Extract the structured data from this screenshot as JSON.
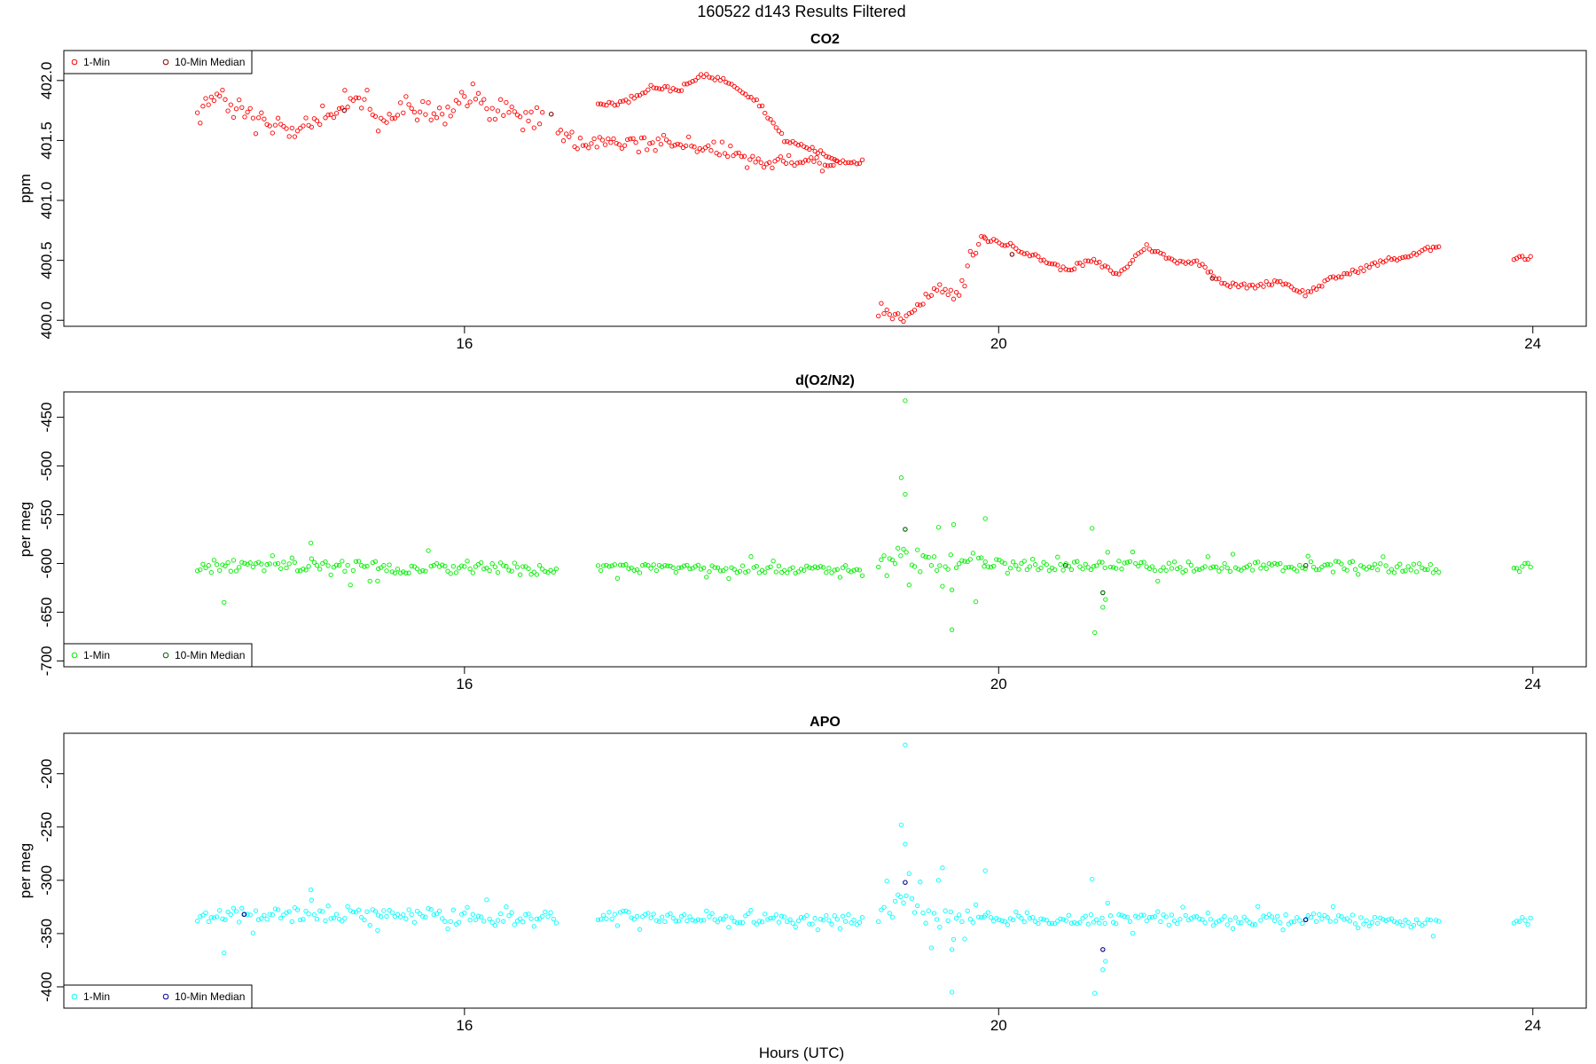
{
  "figure": {
    "title": "160522   d143   Results Filtered",
    "xlabel": "Hours (UTC)"
  },
  "chart_data": [
    {
      "type": "scatter",
      "title": "CO2",
      "xlabel": "Hours (UTC)",
      "ylabel": "ppm",
      "xlim": [
        13.0,
        24.4
      ],
      "ylim": [
        399.95,
        402.25
      ],
      "xticks": [
        "16",
        "20",
        "24"
      ],
      "yticks": [
        "400.0",
        "400.5",
        "401.0",
        "401.5",
        "402.0"
      ],
      "legend": {
        "position": "top-left",
        "entries": [
          "1-Min",
          "10-Min Median"
        ]
      },
      "colors": {
        "one_min": "#ff0000",
        "median": "#8b0000"
      },
      "segments": [
        {
          "x": [
            14.0,
            14.2,
            14.4,
            14.6,
            14.8,
            15.0,
            15.2,
            15.4,
            15.6,
            15.8,
            16.0,
            16.2,
            16.4,
            16.6
          ],
          "y": [
            401.75,
            401.85,
            401.7,
            401.62,
            401.6,
            401.72,
            401.87,
            401.65,
            401.78,
            401.68,
            401.85,
            401.75,
            401.72,
            401.75
          ],
          "noise": 0.04,
          "wild": 0.12,
          "wild_every": 2
        },
        {
          "x": [
            16.7,
            16.85,
            17.0,
            17.2,
            17.4,
            17.6,
            17.8,
            18.0,
            18.2,
            18.4,
            18.6,
            18.8
          ],
          "y": [
            401.58,
            401.45,
            401.52,
            401.48,
            401.5,
            401.46,
            401.44,
            401.38,
            401.33,
            401.31,
            401.34,
            401.3
          ],
          "noise": 0.03,
          "wild": 0.08,
          "wild_every": 3
        },
        {
          "x": [
            17.0,
            17.2,
            17.4,
            17.6,
            17.8,
            18.0,
            18.2,
            18.4,
            18.6,
            18.8,
            19.0
          ],
          "y": [
            401.8,
            401.82,
            401.95,
            401.92,
            402.05,
            401.98,
            401.82,
            401.5,
            401.43,
            401.33,
            401.32
          ],
          "noise": 0.02,
          "wild": 0.0,
          "wild_every": 0
        },
        {
          "x": [
            19.1,
            19.25,
            19.4,
            19.55,
            19.7,
            19.8,
            19.9
          ],
          "y": [
            400.05,
            400.02,
            400.12,
            400.3,
            400.22,
            400.55,
            400.68
          ],
          "noise": 0.03,
          "wild": 0.08,
          "wild_every": 2
        },
        {
          "x": [
            19.9,
            20.1,
            20.3,
            20.5,
            20.7,
            20.9,
            21.1,
            21.3,
            21.5,
            21.7,
            21.9,
            22.1,
            22.3,
            22.5,
            22.7,
            22.9,
            23.1,
            23.3,
            23.5,
            23.7,
            23.9,
            24.0
          ],
          "y": [
            400.68,
            400.62,
            400.52,
            400.42,
            400.5,
            400.38,
            400.62,
            400.5,
            400.48,
            400.3,
            400.28,
            400.33,
            400.22,
            400.35,
            400.42,
            400.5,
            400.54,
            400.63,
            400.55,
            400.5,
            400.53,
            400.51
          ],
          "noise": 0.02,
          "wild": 0.0,
          "wild_every": 0,
          "gap": [
            23.3,
            23.85
          ]
        }
      ],
      "medians": [
        {
          "x": 15.1,
          "y": 401.75
        },
        {
          "x": 16.65,
          "y": 401.72
        },
        {
          "x": 20.1,
          "y": 400.55
        },
        {
          "x": 21.6,
          "y": 400.35
        }
      ]
    },
    {
      "type": "scatter",
      "title": "d(O2/N2)",
      "xlabel": "Hours (UTC)",
      "ylabel": "per meg",
      "xlim": [
        13.0,
        24.4
      ],
      "ylim": [
        -706,
        -424
      ],
      "xticks": [
        "16",
        "20",
        "24"
      ],
      "yticks": [
        "-700",
        "-650",
        "-600",
        "-550",
        "-500",
        "-450"
      ],
      "legend": {
        "position": "bottom-left",
        "entries": [
          "1-Min",
          "10-Min Median"
        ]
      },
      "colors": {
        "one_min": "#00ee00",
        "median": "#006400"
      },
      "segments": [
        {
          "x": [
            14.0,
            15.0,
            16.0,
            16.7
          ],
          "y": [
            -604,
            -603,
            -605,
            -606
          ],
          "noise": 6,
          "wild": 14,
          "wild_every": 7
        },
        {
          "x": [
            17.0,
            18.0,
            19.0
          ],
          "y": [
            -604,
            -606,
            -606
          ],
          "noise": 4,
          "wild": 10,
          "wild_every": 8
        },
        {
          "x": [
            19.1,
            19.3,
            19.5,
            19.7,
            19.9
          ],
          "y": [
            -598,
            -592,
            -600,
            -598,
            -600
          ],
          "noise": 10,
          "wild": 45,
          "wild_every": 4
        },
        {
          "x": [
            19.9,
            20.5,
            21.0,
            21.5,
            22.0,
            22.5,
            23.0,
            23.5,
            24.0
          ],
          "y": [
            -600,
            -603,
            -602,
            -603,
            -604,
            -602,
            -605,
            -604,
            -604
          ],
          "noise": 5,
          "wild": 12,
          "wild_every": 9,
          "gap": [
            23.3,
            23.85
          ]
        }
      ],
      "outliers": [
        {
          "x": 19.3,
          "y": -433
        },
        {
          "x": 19.27,
          "y": -512
        },
        {
          "x": 19.3,
          "y": -529
        },
        {
          "x": 19.55,
          "y": -563
        },
        {
          "x": 19.65,
          "y": -668
        },
        {
          "x": 19.65,
          "y": -627
        },
        {
          "x": 19.9,
          "y": -554
        },
        {
          "x": 20.7,
          "y": -564
        },
        {
          "x": 20.72,
          "y": -671
        },
        {
          "x": 20.78,
          "y": -645
        },
        {
          "x": 20.8,
          "y": -637
        },
        {
          "x": 14.2,
          "y": -640
        },
        {
          "x": 14.85,
          "y": -579
        },
        {
          "x": 15.35,
          "y": -618
        }
      ],
      "medians": [
        {
          "x": 19.3,
          "y": -565
        },
        {
          "x": 20.78,
          "y": -630
        },
        {
          "x": 20.5,
          "y": -602
        },
        {
          "x": 22.3,
          "y": -602
        }
      ]
    },
    {
      "type": "scatter",
      "title": "APO",
      "xlabel": "Hours (UTC)",
      "ylabel": "per meg",
      "xlim": [
        13.0,
        24.4
      ],
      "ylim": [
        -420,
        -162
      ],
      "xticks": [
        "16",
        "20",
        "24"
      ],
      "yticks": [
        "-400",
        "-350",
        "-300",
        "-250",
        "-200"
      ],
      "legend": {
        "position": "bottom-left",
        "entries": [
          "1-Min",
          "10-Min Median"
        ]
      },
      "colors": {
        "one_min": "#00ffff",
        "median": "#00008b"
      },
      "segments": [
        {
          "x": [
            14.0,
            15.0,
            16.0,
            16.7
          ],
          "y": [
            -333,
            -331,
            -335,
            -337
          ],
          "noise": 7,
          "wild": 14,
          "wild_every": 7
        },
        {
          "x": [
            17.0,
            18.0,
            19.0
          ],
          "y": [
            -333,
            -336,
            -337
          ],
          "noise": 5,
          "wild": 10,
          "wild_every": 8
        },
        {
          "x": [
            19.1,
            19.3,
            19.5,
            19.7,
            19.9
          ],
          "y": [
            -330,
            -320,
            -335,
            -332,
            -333
          ],
          "noise": 10,
          "wild": 40,
          "wild_every": 4
        },
        {
          "x": [
            19.9,
            20.5,
            21.0,
            21.5,
            22.0,
            22.5,
            23.0,
            23.5,
            24.0
          ],
          "y": [
            -333,
            -337,
            -336,
            -338,
            -337,
            -336,
            -340,
            -338,
            -338
          ],
          "noise": 5,
          "wild": 12,
          "wild_every": 9,
          "gap": [
            23.3,
            23.85
          ]
        }
      ],
      "outliers": [
        {
          "x": 19.3,
          "y": -173
        },
        {
          "x": 19.27,
          "y": -248
        },
        {
          "x": 19.3,
          "y": -266
        },
        {
          "x": 19.55,
          "y": -300
        },
        {
          "x": 19.65,
          "y": -405
        },
        {
          "x": 19.65,
          "y": -365
        },
        {
          "x": 19.9,
          "y": -291
        },
        {
          "x": 20.7,
          "y": -299
        },
        {
          "x": 20.72,
          "y": -406
        },
        {
          "x": 20.78,
          "y": -384
        },
        {
          "x": 20.8,
          "y": -376
        },
        {
          "x": 14.2,
          "y": -368
        },
        {
          "x": 14.85,
          "y": -309
        },
        {
          "x": 15.35,
          "y": -347
        }
      ],
      "medians": [
        {
          "x": 19.3,
          "y": -302
        },
        {
          "x": 20.78,
          "y": -365
        },
        {
          "x": 14.35,
          "y": -332
        },
        {
          "x": 22.3,
          "y": -337
        }
      ]
    }
  ]
}
